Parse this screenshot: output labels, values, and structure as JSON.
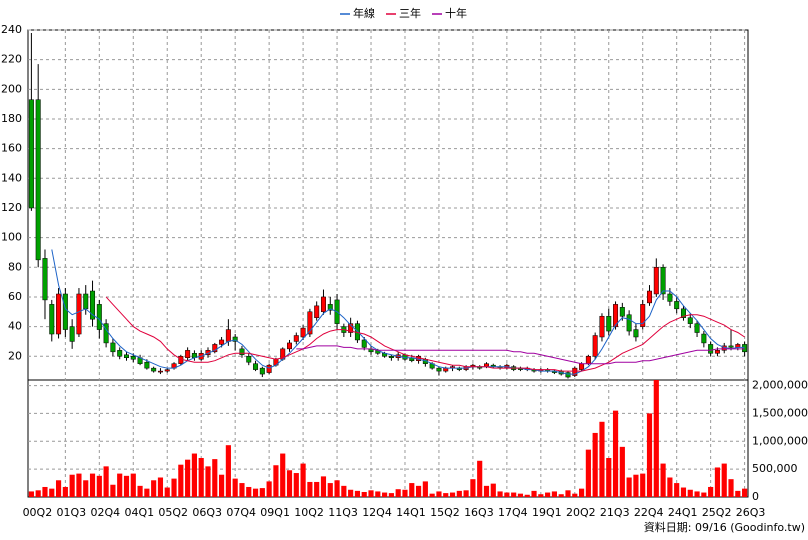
{
  "chart_data": {
    "type": "candlestick",
    "annotation": "資料日期: 09/16 (Goodinfo.tw)",
    "categories": [
      "00Q2",
      null,
      null,
      null,
      null,
      "01Q3",
      null,
      null,
      null,
      null,
      "02Q4",
      null,
      null,
      null,
      null,
      "04Q1",
      null,
      null,
      null,
      null,
      "05Q2",
      null,
      null,
      null,
      null,
      "06Q3",
      null,
      null,
      null,
      null,
      "07Q4",
      null,
      null,
      null,
      null,
      "09Q1",
      null,
      null,
      null,
      null,
      "10Q2",
      null,
      null,
      null,
      null,
      "11Q3",
      null,
      null,
      null,
      null,
      "12Q4",
      null,
      null,
      null,
      null,
      "14Q1",
      null,
      null,
      null,
      null,
      "15Q2",
      null,
      null,
      null,
      null,
      "16Q3",
      null,
      null,
      null,
      null,
      "17Q4",
      null,
      null,
      null,
      null,
      "19Q1",
      null,
      null,
      null,
      null,
      "20Q2",
      null,
      null,
      null,
      null,
      "21Q3",
      null,
      null,
      null,
      null,
      "22Q4",
      null,
      null,
      null,
      null,
      "24Q1",
      null,
      null,
      null,
      null,
      "25Q2",
      null,
      null,
      null,
      null,
      "26Q3"
    ],
    "open": [
      193,
      193,
      86,
      55,
      35,
      62,
      40,
      35,
      62,
      64,
      55,
      42,
      29,
      24,
      21,
      20,
      19,
      16,
      12,
      10,
      10,
      12,
      15,
      19,
      22,
      18,
      21,
      23,
      28,
      30,
      33,
      25,
      20,
      15,
      12,
      9,
      14,
      18,
      25,
      30,
      33,
      35,
      46,
      50,
      55,
      58,
      40,
      36,
      42,
      31,
      25,
      24,
      22,
      20,
      19,
      21,
      19,
      17,
      18,
      15,
      12,
      10,
      12,
      12,
      11,
      13,
      13,
      13,
      14,
      13,
      12,
      13,
      12,
      11,
      11,
      10,
      11,
      10,
      10,
      9,
      7,
      11,
      15,
      20,
      33,
      47,
      40,
      53,
      48,
      38,
      40,
      56,
      62,
      80,
      62,
      57,
      52,
      46,
      42,
      35,
      28,
      22,
      24,
      27,
      26,
      28
    ],
    "high": [
      238,
      217,
      92,
      58,
      66,
      66,
      45,
      66,
      68,
      71,
      58,
      45,
      32,
      26,
      23,
      22,
      21,
      18,
      13,
      12,
      12,
      16,
      21,
      26,
      24,
      24,
      26,
      29,
      33,
      45,
      35,
      27,
      22,
      17,
      13,
      15,
      19,
      26,
      31,
      36,
      41,
      52,
      57,
      65,
      60,
      62,
      42,
      46,
      44,
      33,
      27,
      25,
      23,
      21,
      23,
      22,
      21,
      21,
      19,
      16,
      13,
      13,
      14,
      13,
      14,
      15,
      14,
      16,
      15,
      14,
      15,
      14,
      13,
      13,
      12,
      12,
      12,
      11,
      11,
      10,
      13,
      16,
      21,
      36,
      49,
      52,
      57,
      56,
      51,
      42,
      58,
      68,
      86,
      82,
      66,
      60,
      54,
      49,
      44,
      37,
      30,
      26,
      29,
      38,
      29,
      30
    ],
    "low": [
      118,
      80,
      45,
      30,
      32,
      33,
      25,
      33,
      48,
      40,
      32,
      26,
      20,
      18,
      17,
      16,
      14,
      11,
      9,
      8,
      9,
      11,
      14,
      17,
      17,
      17,
      19,
      22,
      26,
      27,
      24,
      19,
      14,
      10,
      6,
      8,
      13,
      17,
      23,
      28,
      31,
      33,
      44,
      48,
      48,
      38,
      33,
      33,
      29,
      24,
      21,
      21,
      19,
      17,
      17,
      17,
      16,
      15,
      13,
      11,
      7,
      9,
      10,
      10,
      10,
      11,
      11,
      12,
      12,
      11,
      11,
      10,
      10,
      10,
      9,
      9,
      9,
      8,
      7,
      5,
      6,
      10,
      14,
      18,
      30,
      34,
      38,
      44,
      34,
      30,
      38,
      54,
      60,
      58,
      54,
      49,
      44,
      39,
      33,
      26,
      20,
      20,
      22,
      24,
      24,
      20
    ],
    "close": [
      120,
      85,
      58,
      35,
      62,
      38,
      30,
      62,
      52,
      45,
      38,
      29,
      23,
      20,
      19,
      18,
      15,
      12,
      10,
      10,
      11,
      15,
      20,
      24,
      19,
      22,
      24,
      28,
      31,
      38,
      30,
      21,
      16,
      11,
      8,
      14,
      18,
      25,
      29,
      34,
      39,
      50,
      54,
      60,
      51,
      42,
      36,
      42,
      31,
      26,
      23,
      22,
      20,
      19,
      21,
      18,
      17,
      20,
      15,
      12,
      10,
      12,
      13,
      11,
      13,
      14,
      12,
      15,
      13,
      12,
      14,
      11,
      11,
      12,
      10,
      11,
      10,
      9,
      8,
      6,
      12,
      15,
      20,
      34,
      47,
      37,
      55,
      47,
      37,
      33,
      55,
      64,
      80,
      62,
      57,
      52,
      46,
      42,
      36,
      29,
      22,
      24,
      27,
      26,
      28,
      23
    ],
    "volume": [
      100000,
      120000,
      180000,
      150000,
      300000,
      180000,
      400000,
      420000,
      300000,
      420000,
      380000,
      550000,
      220000,
      420000,
      380000,
      420000,
      200000,
      150000,
      300000,
      350000,
      170000,
      330000,
      580000,
      670000,
      780000,
      700000,
      550000,
      680000,
      400000,
      930000,
      330000,
      250000,
      180000,
      150000,
      160000,
      280000,
      570000,
      780000,
      480000,
      430000,
      600000,
      270000,
      270000,
      370000,
      250000,
      300000,
      200000,
      130000,
      110000,
      90000,
      120000,
      100000,
      80000,
      70000,
      140000,
      130000,
      250000,
      200000,
      280000,
      60000,
      100000,
      70000,
      80000,
      110000,
      120000,
      320000,
      650000,
      200000,
      240000,
      100000,
      80000,
      80000,
      60000,
      40000,
      110000,
      50000,
      80000,
      100000,
      50000,
      120000,
      60000,
      150000,
      850000,
      1150000,
      1350000,
      700000,
      1550000,
      900000,
      350000,
      400000,
      420000,
      1500000,
      2100000,
      600000,
      350000,
      250000,
      170000,
      130000,
      100000,
      80000,
      180000,
      530000,
      600000,
      320000,
      110000,
      150000
    ],
    "up_color": "#ff0000",
    "down_color": "#00a000",
    "volume_color": "#ff0000",
    "series": [
      {
        "name": "年線",
        "color": "#1e64c8",
        "values": [
          null,
          null,
          null,
          92,
          68,
          52,
          48,
          50,
          52,
          48,
          45,
          38,
          32,
          27,
          23,
          21,
          19,
          17,
          15,
          13,
          12,
          12,
          14,
          17,
          19,
          20,
          22,
          24,
          27,
          30,
          31,
          28,
          23,
          18,
          14,
          12,
          14,
          18,
          22,
          27,
          32,
          37,
          43,
          49,
          52,
          50,
          46,
          41,
          37,
          32,
          27,
          24,
          22,
          21,
          20,
          19,
          19,
          18,
          17,
          15,
          13,
          12,
          12,
          12,
          12,
          13,
          13,
          13,
          13,
          13,
          13,
          12,
          12,
          11,
          11,
          10,
          10,
          10,
          9,
          8,
          8,
          10,
          13,
          18,
          25,
          33,
          41,
          46,
          45,
          42,
          42,
          47,
          58,
          64,
          64,
          60,
          54,
          49,
          44,
          38,
          32,
          28,
          26,
          25,
          26,
          26
        ]
      },
      {
        "name": "三年",
        "color": "#e0003c",
        "values": [
          null,
          null,
          null,
          null,
          null,
          null,
          null,
          null,
          null,
          null,
          null,
          60,
          55,
          50,
          45,
          40,
          37,
          35,
          33,
          30,
          25,
          21,
          18,
          17,
          16,
          16,
          16,
          17,
          19,
          21,
          22,
          22,
          22,
          21,
          20,
          19,
          18,
          19,
          21,
          23,
          25,
          28,
          32,
          35,
          37,
          38,
          38,
          37,
          36,
          35,
          33,
          30,
          27,
          25,
          23,
          21,
          20,
          19,
          18,
          17,
          16,
          15,
          14,
          14,
          13,
          13,
          13,
          13,
          12,
          12,
          12,
          12,
          12,
          12,
          11,
          11,
          11,
          11,
          10,
          10,
          10,
          10,
          11,
          12,
          14,
          16,
          19,
          22,
          24,
          26,
          28,
          32,
          36,
          40,
          43,
          45,
          47,
          48,
          48,
          47,
          45,
          43,
          41,
          38,
          36,
          33
        ]
      },
      {
        "name": "十年",
        "color": "#a000a0",
        "values": [
          null,
          null,
          null,
          null,
          null,
          null,
          null,
          null,
          null,
          null,
          null,
          null,
          null,
          null,
          null,
          null,
          null,
          null,
          null,
          null,
          null,
          null,
          null,
          null,
          null,
          null,
          null,
          null,
          null,
          null,
          null,
          null,
          null,
          null,
          null,
          null,
          null,
          null,
          null,
          25,
          25,
          26,
          27,
          27,
          27,
          27,
          26,
          26,
          25,
          25,
          25,
          24,
          24,
          24,
          24,
          24,
          24,
          24,
          24,
          24,
          24,
          24,
          24,
          24,
          24,
          24,
          24,
          24,
          24,
          24,
          24,
          23,
          23,
          22,
          22,
          21,
          20,
          19,
          18,
          17,
          16,
          15,
          15,
          15,
          15,
          15,
          16,
          16,
          16,
          16,
          17,
          17,
          18,
          19,
          20,
          21,
          22,
          23,
          24,
          24,
          24,
          25,
          25,
          25,
          25,
          25
        ]
      }
    ],
    "ylim": [
      4,
      240
    ],
    "yticks": [
      20,
      40,
      60,
      80,
      100,
      120,
      140,
      160,
      180,
      200,
      220,
      240
    ],
    "y2lim": [
      0,
      2100000
    ],
    "y2ticks": [
      0,
      {
        "value": 500000,
        "label": "500,000"
      },
      {
        "value": 1000000,
        "label": "1,000,000"
      },
      {
        "value": 1500000,
        "label": "1,500,000"
      },
      {
        "value": 2000000,
        "label": "2,000,000"
      }
    ],
    "grid": true,
    "legend": "top"
  }
}
